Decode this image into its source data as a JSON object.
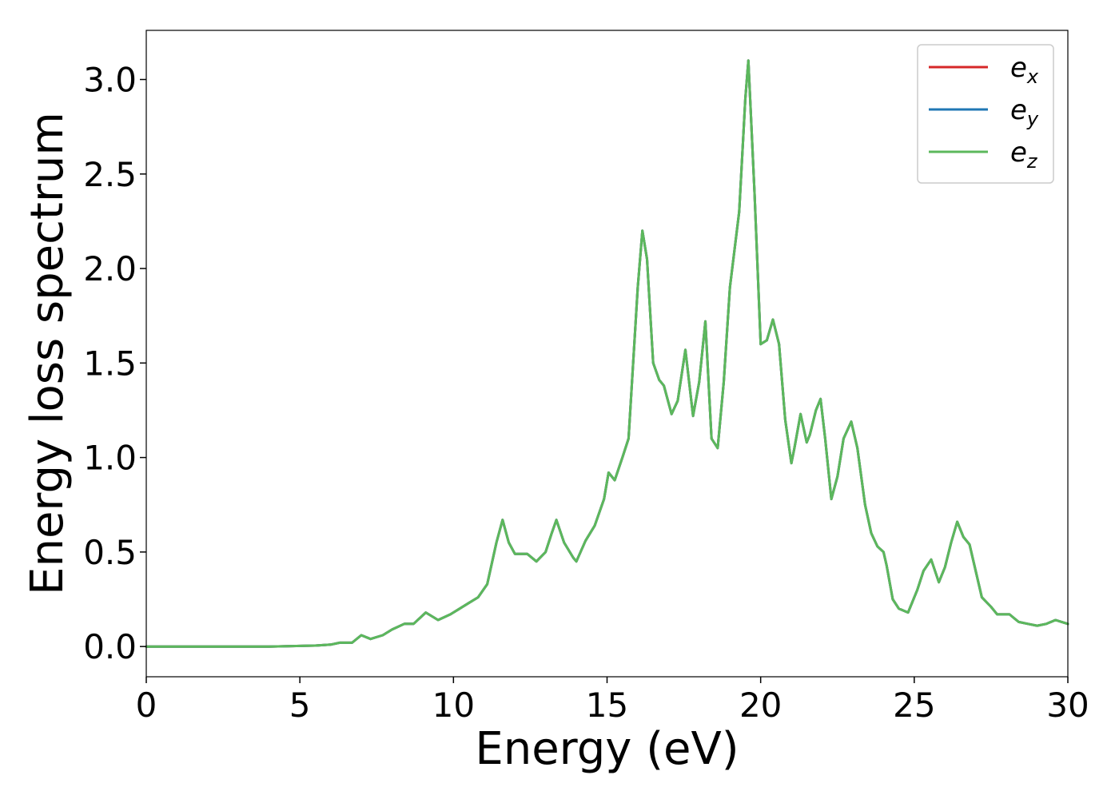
{
  "chart_data": {
    "type": "line",
    "xlabel": "Energy (eV)",
    "ylabel": "Energy loss spectrum",
    "xlim": [
      0,
      30
    ],
    "ylim": [
      -0.16,
      3.26
    ],
    "xticks": [
      0,
      5,
      10,
      15,
      20,
      25,
      30
    ],
    "xtick_labels": [
      "0",
      "5",
      "10",
      "15",
      "20",
      "25",
      "30"
    ],
    "yticks": [
      0.0,
      0.5,
      1.0,
      1.5,
      2.0,
      2.5,
      3.0
    ],
    "ytick_labels": [
      "0.0",
      "0.5",
      "1.0",
      "1.5",
      "2.0",
      "2.5",
      "3.0"
    ],
    "grid": false,
    "legend": {
      "placement": "top-right"
    },
    "x": [
      0,
      2,
      4,
      5.5,
      6.0,
      6.3,
      6.7,
      7.0,
      7.3,
      7.7,
      8.0,
      8.4,
      8.7,
      9.1,
      9.5,
      9.9,
      10.2,
      10.5,
      10.8,
      11.1,
      11.4,
      11.6,
      11.8,
      12.0,
      12.4,
      12.7,
      13.0,
      13.2,
      13.35,
      13.6,
      13.9,
      14.0,
      14.3,
      14.6,
      14.9,
      15.05,
      15.25,
      15.5,
      15.7,
      16.0,
      16.15,
      16.3,
      16.5,
      16.7,
      16.85,
      17.1,
      17.3,
      17.55,
      17.8,
      18.0,
      18.2,
      18.4,
      18.6,
      18.8,
      19.0,
      19.3,
      19.5,
      19.6,
      19.8,
      20.0,
      20.2,
      20.4,
      20.6,
      20.8,
      21.0,
      21.1,
      21.3,
      21.5,
      21.6,
      21.8,
      21.95,
      22.1,
      22.3,
      22.5,
      22.7,
      22.95,
      23.15,
      23.4,
      23.6,
      23.8,
      24.0,
      24.1,
      24.3,
      24.5,
      24.8,
      25.1,
      25.3,
      25.55,
      25.8,
      26.0,
      26.2,
      26.4,
      26.6,
      26.8,
      27.0,
      27.2,
      27.5,
      27.7,
      27.9,
      28.1,
      28.4,
      28.7,
      29.0,
      29.3,
      29.6,
      29.8,
      30.0
    ],
    "series": [
      {
        "name": "e_x",
        "label_base": "e",
        "label_sub": "x",
        "color": "#d62728",
        "values": [
          0.0,
          0.0,
          0.0,
          0.005,
          0.01,
          0.02,
          0.02,
          0.06,
          0.04,
          0.06,
          0.09,
          0.12,
          0.12,
          0.18,
          0.14,
          0.17,
          0.2,
          0.23,
          0.26,
          0.33,
          0.55,
          0.67,
          0.55,
          0.49,
          0.49,
          0.45,
          0.5,
          0.6,
          0.67,
          0.55,
          0.47,
          0.45,
          0.56,
          0.64,
          0.78,
          0.92,
          0.88,
          1.0,
          1.1,
          1.9,
          2.2,
          2.05,
          1.5,
          1.41,
          1.38,
          1.23,
          1.3,
          1.57,
          1.22,
          1.4,
          1.72,
          1.1,
          1.05,
          1.4,
          1.9,
          2.3,
          2.9,
          3.1,
          2.4,
          1.6,
          1.62,
          1.73,
          1.6,
          1.2,
          0.97,
          1.05,
          1.23,
          1.08,
          1.12,
          1.25,
          1.31,
          1.1,
          0.78,
          0.9,
          1.1,
          1.19,
          1.05,
          0.75,
          0.6,
          0.53,
          0.5,
          0.43,
          0.25,
          0.2,
          0.18,
          0.3,
          0.4,
          0.46,
          0.34,
          0.42,
          0.55,
          0.66,
          0.58,
          0.54,
          0.4,
          0.26,
          0.21,
          0.17,
          0.17,
          0.17,
          0.13,
          0.12,
          0.11,
          0.12,
          0.14,
          0.13,
          0.12
        ]
      },
      {
        "name": "e_y",
        "label_base": "e",
        "label_sub": "y",
        "color": "#1f77b4",
        "values": [
          0.0,
          0.0,
          0.0,
          0.005,
          0.01,
          0.02,
          0.02,
          0.06,
          0.04,
          0.06,
          0.09,
          0.12,
          0.12,
          0.18,
          0.14,
          0.17,
          0.2,
          0.23,
          0.26,
          0.33,
          0.55,
          0.67,
          0.55,
          0.49,
          0.49,
          0.45,
          0.5,
          0.6,
          0.67,
          0.55,
          0.47,
          0.45,
          0.56,
          0.64,
          0.78,
          0.92,
          0.88,
          1.0,
          1.1,
          1.9,
          2.2,
          2.05,
          1.5,
          1.41,
          1.38,
          1.23,
          1.3,
          1.57,
          1.22,
          1.4,
          1.72,
          1.1,
          1.05,
          1.4,
          1.9,
          2.3,
          2.9,
          3.1,
          2.4,
          1.6,
          1.62,
          1.73,
          1.6,
          1.2,
          0.97,
          1.05,
          1.23,
          1.08,
          1.12,
          1.25,
          1.31,
          1.1,
          0.78,
          0.9,
          1.1,
          1.19,
          1.05,
          0.75,
          0.6,
          0.53,
          0.5,
          0.43,
          0.25,
          0.2,
          0.18,
          0.3,
          0.4,
          0.46,
          0.34,
          0.42,
          0.55,
          0.66,
          0.58,
          0.54,
          0.4,
          0.26,
          0.21,
          0.17,
          0.17,
          0.17,
          0.13,
          0.12,
          0.11,
          0.12,
          0.14,
          0.13,
          0.12
        ]
      },
      {
        "name": "e_z",
        "label_base": "e",
        "label_sub": "z",
        "color": "#5cb85c",
        "values": [
          0.0,
          0.0,
          0.0,
          0.005,
          0.01,
          0.02,
          0.02,
          0.06,
          0.04,
          0.06,
          0.09,
          0.12,
          0.12,
          0.18,
          0.14,
          0.17,
          0.2,
          0.23,
          0.26,
          0.33,
          0.55,
          0.67,
          0.55,
          0.49,
          0.49,
          0.45,
          0.5,
          0.6,
          0.67,
          0.55,
          0.47,
          0.45,
          0.56,
          0.64,
          0.78,
          0.92,
          0.88,
          1.0,
          1.1,
          1.9,
          2.2,
          2.05,
          1.5,
          1.41,
          1.38,
          1.23,
          1.3,
          1.57,
          1.22,
          1.4,
          1.72,
          1.1,
          1.05,
          1.4,
          1.9,
          2.3,
          2.9,
          3.1,
          2.4,
          1.6,
          1.62,
          1.73,
          1.6,
          1.2,
          0.97,
          1.05,
          1.23,
          1.08,
          1.12,
          1.25,
          1.31,
          1.1,
          0.78,
          0.9,
          1.1,
          1.19,
          1.05,
          0.75,
          0.6,
          0.53,
          0.5,
          0.43,
          0.25,
          0.2,
          0.18,
          0.3,
          0.4,
          0.46,
          0.34,
          0.42,
          0.55,
          0.66,
          0.58,
          0.54,
          0.4,
          0.26,
          0.21,
          0.17,
          0.17,
          0.17,
          0.13,
          0.12,
          0.11,
          0.12,
          0.14,
          0.13,
          0.12
        ]
      }
    ]
  }
}
